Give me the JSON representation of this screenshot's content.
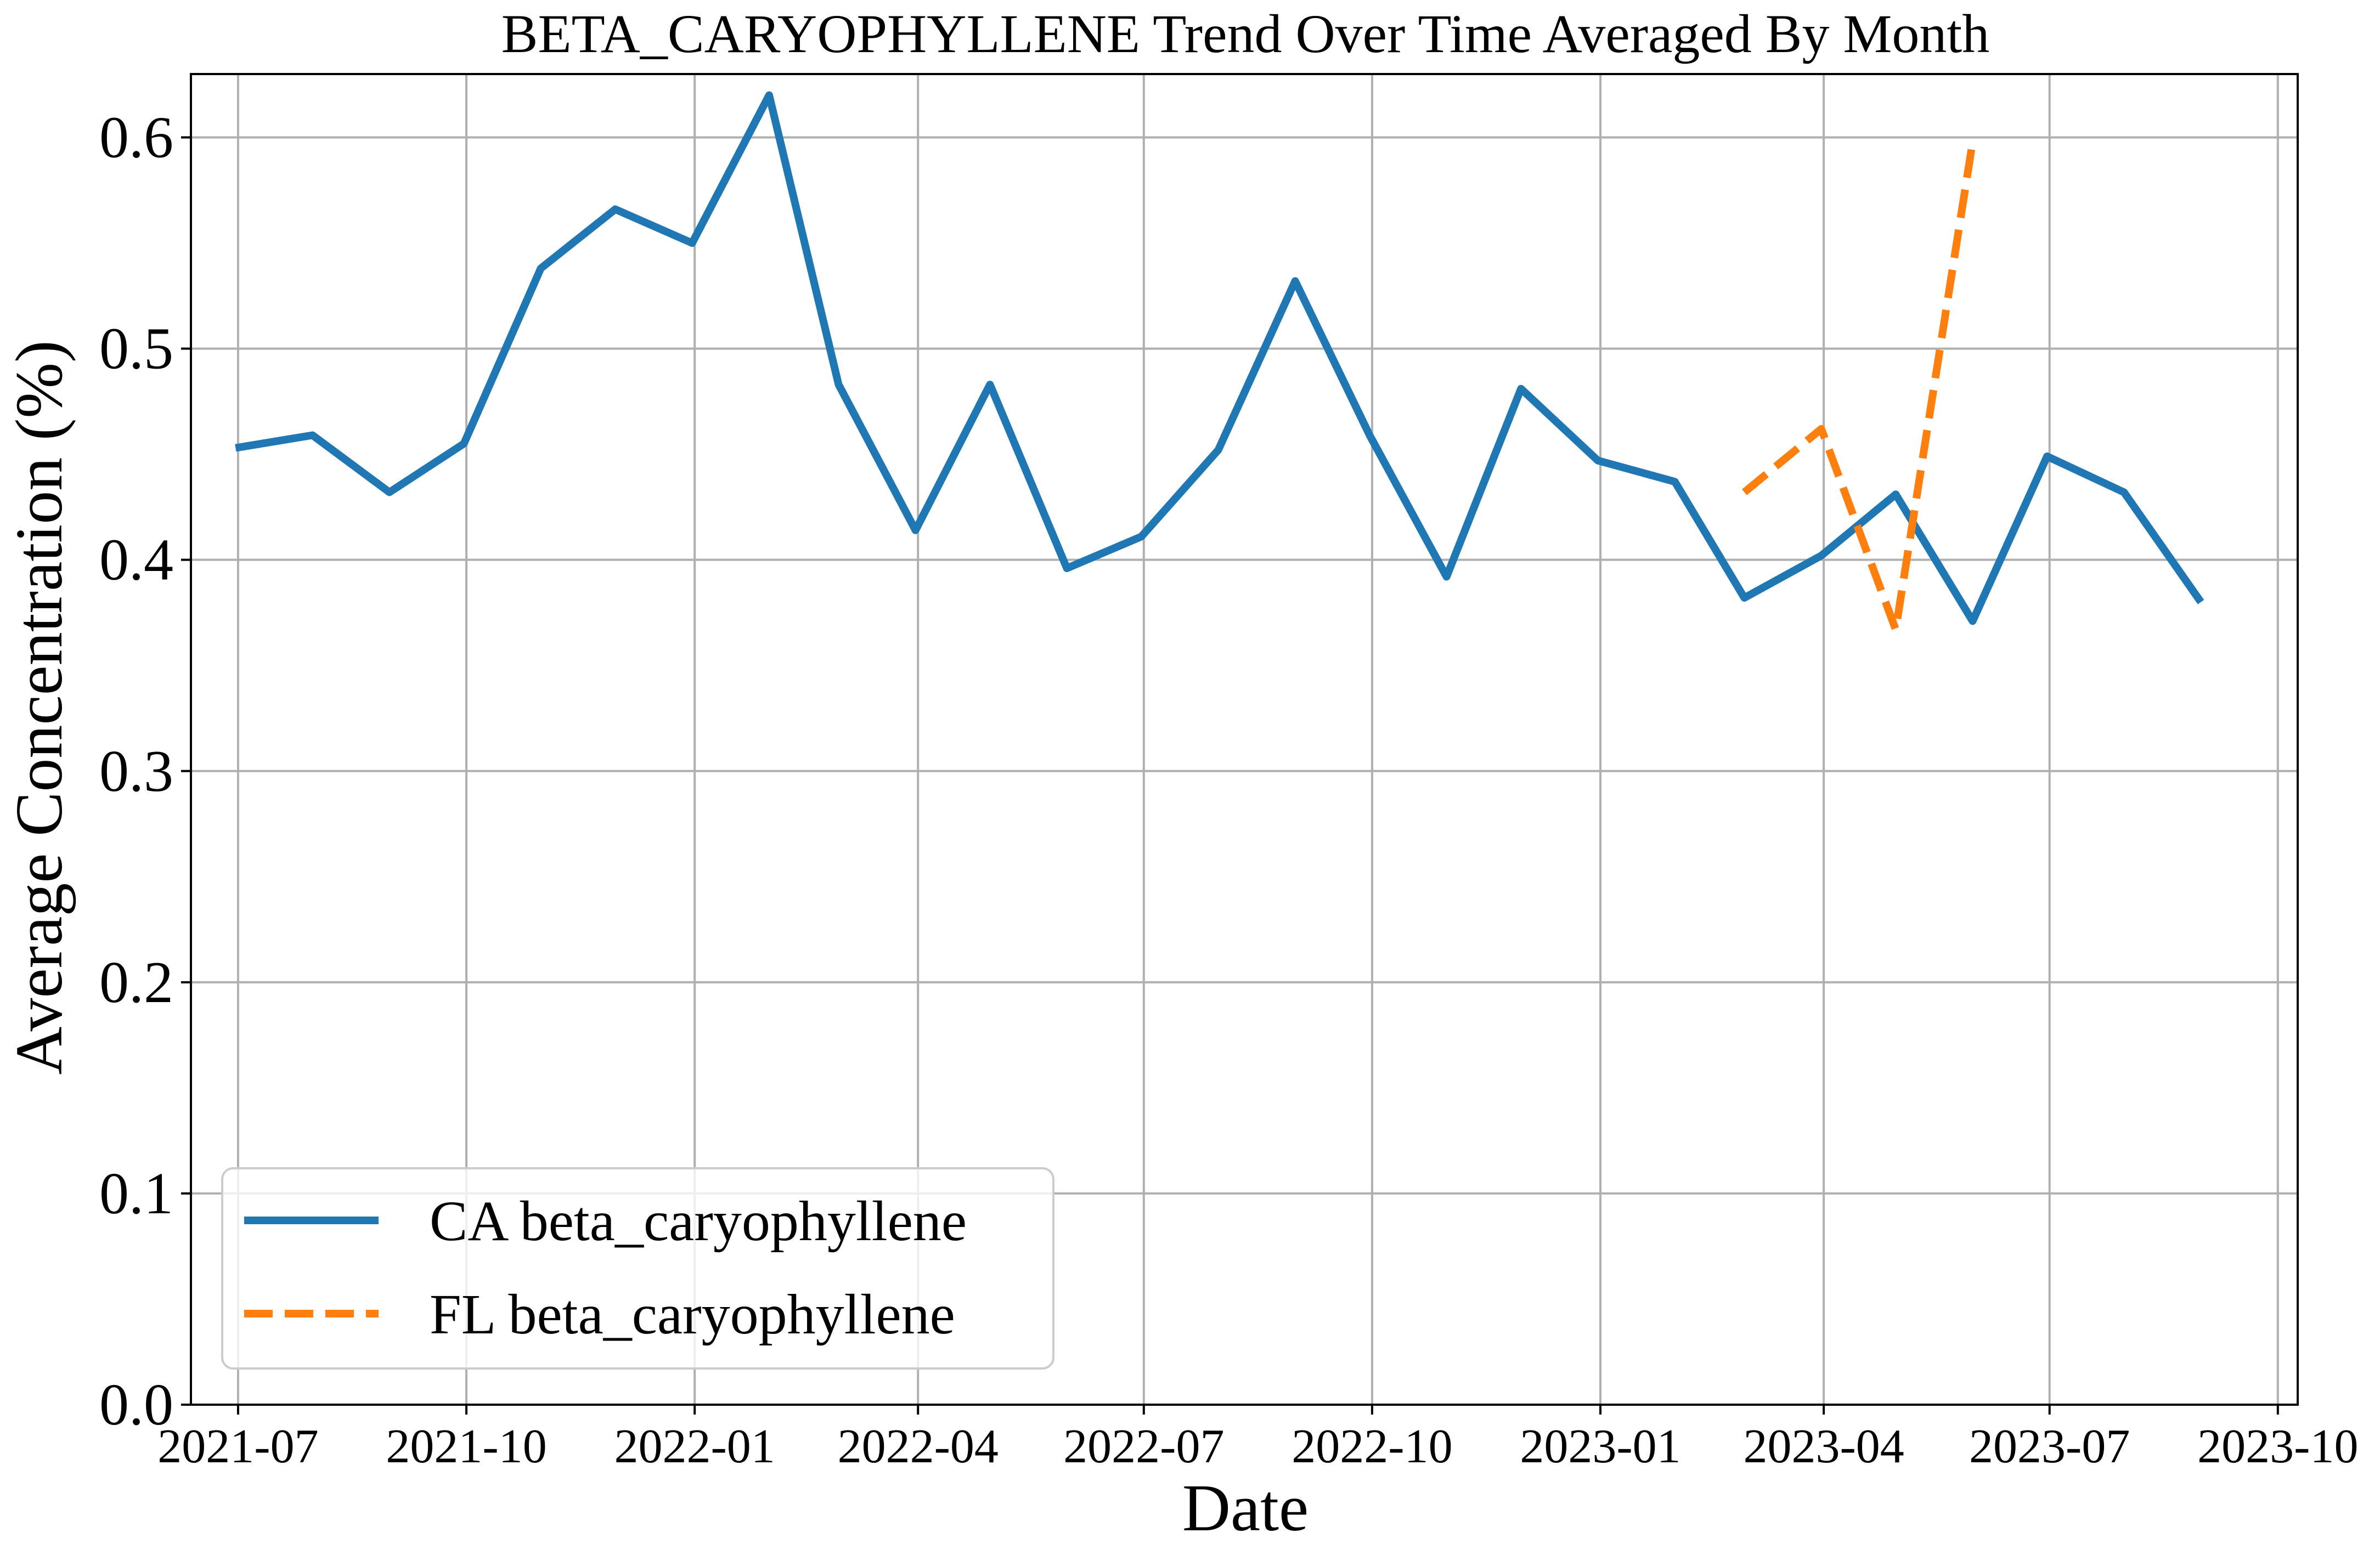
{
  "chart_data": {
    "type": "line",
    "title": "BETA_CARYOPHYLLENE Trend Over Time Averaged By Month",
    "xlabel": "Date",
    "ylabel": "Average Concentration (%)",
    "ylim": [
      0.0,
      0.63
    ],
    "xlim": [
      "2021-06-12",
      "2023-10-09"
    ],
    "grid": true,
    "legend_position": "lower-left",
    "y_ticks": [
      "0.0",
      "0.1",
      "0.2",
      "0.3",
      "0.4",
      "0.5",
      "0.6"
    ],
    "x_ticks": [
      "2021-07",
      "2021-10",
      "2022-01",
      "2022-04",
      "2022-07",
      "2022-10",
      "2023-01",
      "2023-04",
      "2023-07",
      "2023-10"
    ],
    "series": [
      {
        "name": "CA beta_caryophyllene",
        "color": "#1f77b4",
        "style": "solid",
        "x": [
          "2021-06-30",
          "2021-07-31",
          "2021-08-31",
          "2021-09-30",
          "2021-10-31",
          "2021-11-30",
          "2021-12-31",
          "2022-01-31",
          "2022-02-28",
          "2022-03-31",
          "2022-04-30",
          "2022-05-31",
          "2022-06-30",
          "2022-07-31",
          "2022-08-31",
          "2022-09-30",
          "2022-10-31",
          "2022-11-30",
          "2022-12-31",
          "2023-01-31",
          "2023-02-28",
          "2023-03-31",
          "2023-04-30",
          "2023-05-31",
          "2023-06-30",
          "2023-07-31",
          "2023-08-31"
        ],
        "values": [
          0.453,
          0.459,
          0.432,
          0.455,
          0.538,
          0.566,
          0.55,
          0.62,
          0.483,
          0.414,
          0.483,
          0.396,
          0.411,
          0.452,
          0.532,
          0.459,
          0.392,
          0.481,
          0.447,
          0.437,
          0.382,
          0.402,
          0.431,
          0.371,
          0.449,
          0.432,
          0.38
        ]
      },
      {
        "name": "FL beta_caryophyllene",
        "color": "#ff7f0e",
        "style": "dashed",
        "x": [
          "2023-02-28",
          "2023-03-31",
          "2023-04-30",
          "2023-05-31"
        ],
        "values": [
          0.432,
          0.462,
          0.367,
          0.598
        ]
      }
    ]
  }
}
